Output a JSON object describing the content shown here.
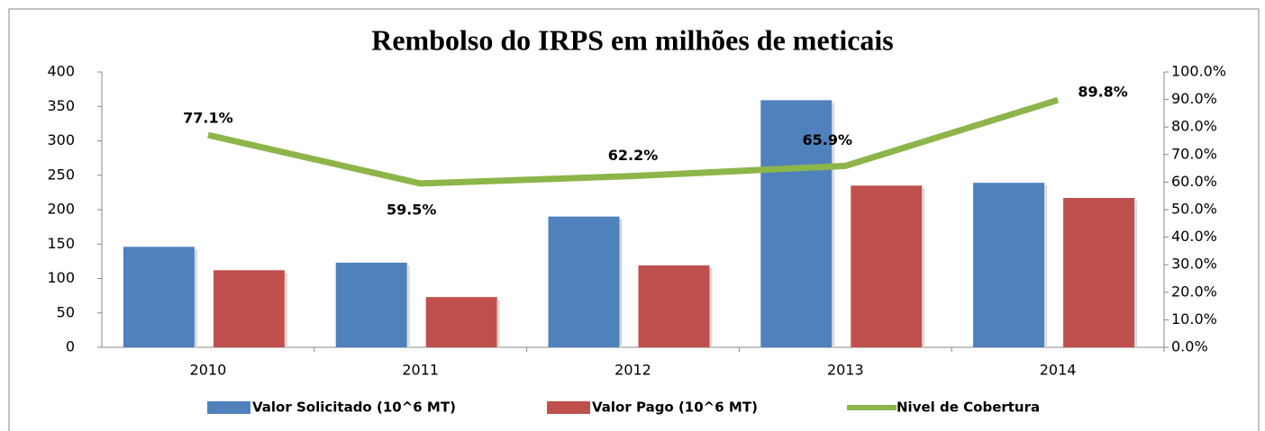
{
  "chart_data": {
    "type": "bar",
    "title": "Rembolso do IRPS em milhões de meticais",
    "categories": [
      "2010",
      "2011",
      "2012",
      "2013",
      "2014"
    ],
    "series": [
      {
        "name": "Valor Solicitado (10^6 MT)",
        "color": "#4f81bd",
        "values": [
          146,
          123,
          190,
          359,
          239
        ]
      },
      {
        "name": "Valor Pago (10^6 MT)",
        "color": "#c0504d",
        "values": [
          112,
          73,
          119,
          235,
          217
        ]
      },
      {
        "name": "Nivel de Cobertura",
        "color": "#8db54a",
        "type": "line",
        "axis": "y2",
        "values": [
          77.1,
          59.5,
          62.2,
          65.9,
          89.8
        ],
        "value_labels": [
          "77.1%",
          "59.5%",
          "62.2%",
          "65.9%",
          "89.8%"
        ]
      }
    ],
    "ylim": [
      0,
      400
    ],
    "yticks": [
      0,
      50,
      100,
      150,
      200,
      250,
      300,
      350,
      400
    ],
    "y2lim": [
      0,
      100
    ],
    "y2ticks": [
      {
        "value": 0,
        "label": "0.0%"
      },
      {
        "value": 10,
        "label": "10.0%"
      },
      {
        "value": 20,
        "label": "20.0%"
      },
      {
        "value": 30,
        "label": "30.0%"
      },
      {
        "value": 40,
        "label": "40.0%"
      },
      {
        "value": 50,
        "label": "50.0%"
      },
      {
        "value": 60,
        "label": "60.0%"
      },
      {
        "value": 70,
        "label": "70.0%"
      },
      {
        "value": 80,
        "label": "80.0%"
      },
      {
        "value": 90,
        "label": "90.0%"
      },
      {
        "value": 100,
        "label": "100.0%"
      }
    ],
    "legend": "bottom"
  }
}
